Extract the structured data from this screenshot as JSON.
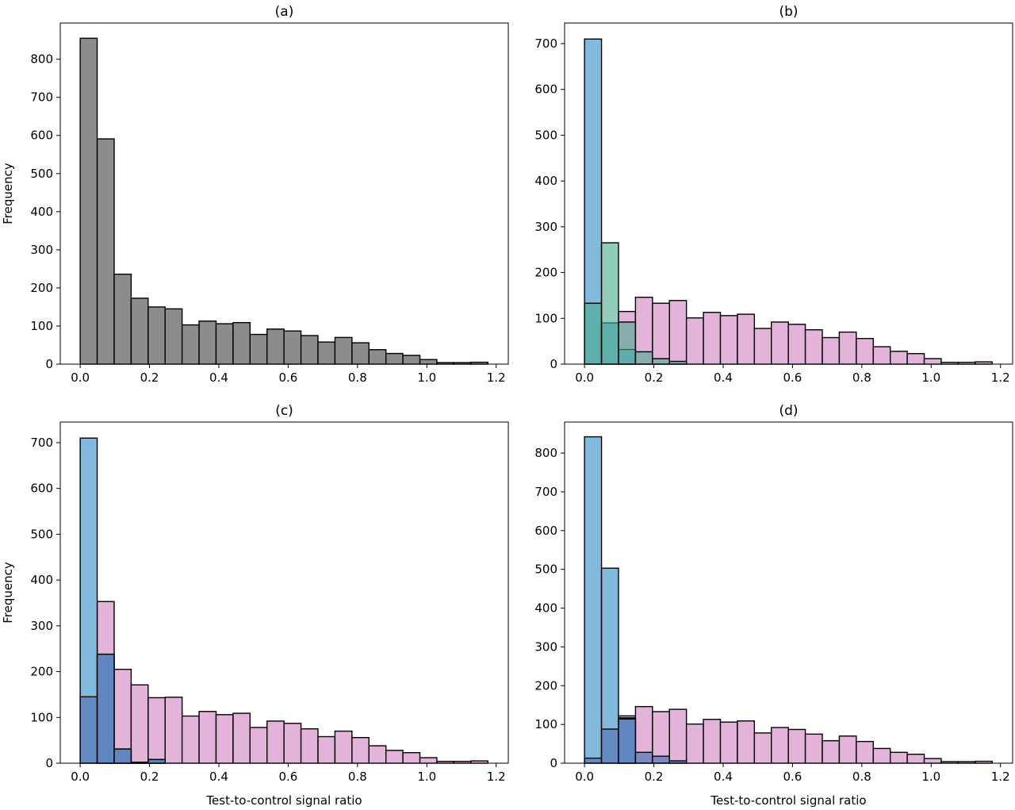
{
  "figure": {
    "background": "#ffffff"
  },
  "colors": {
    "gray": "#8c8c8c",
    "pink": "#e3b3da",
    "blue": "#6baed6",
    "teal": "#4aaa8e",
    "edge": "#000000"
  },
  "chart_data": [
    {
      "id": "a",
      "type": "bar",
      "title": "(a)",
      "xlabel": "",
      "ylabel": "Frequency",
      "xlim": [
        -0.0575,
        1.235
      ],
      "ylim": [
        0,
        895
      ],
      "xticks": [
        0.0,
        0.2,
        0.4,
        0.6,
        0.8,
        1.0,
        1.2
      ],
      "xtick_labels": [
        "0.0",
        "0.2",
        "0.4",
        "0.6",
        "0.8",
        "1.0",
        "1.2"
      ],
      "yticks": [
        0,
        100,
        200,
        300,
        400,
        500,
        600,
        700,
        800
      ],
      "ytick_labels": [
        "0",
        "100",
        "200",
        "300",
        "400",
        "500",
        "600",
        "700",
        "800"
      ],
      "bin_start": 0.0,
      "bin_width": 0.049,
      "series": [
        {
          "color": "#8c8c8c",
          "opacity": 1.0,
          "values": [
            855,
            591,
            236,
            173,
            150,
            145,
            103,
            113,
            106,
            109,
            78,
            92,
            87,
            75,
            58,
            70,
            56,
            38,
            28,
            23,
            12,
            4,
            4,
            5
          ]
        }
      ]
    },
    {
      "id": "b",
      "type": "bar",
      "title": "(b)",
      "xlabel": "",
      "ylabel": "",
      "xlim": [
        -0.0575,
        1.235
      ],
      "ylim": [
        0,
        745
      ],
      "xticks": [
        0.0,
        0.2,
        0.4,
        0.6,
        0.8,
        1.0,
        1.2
      ],
      "xtick_labels": [
        "0.0",
        "0.2",
        "0.4",
        "0.6",
        "0.8",
        "1.0",
        "1.2"
      ],
      "yticks": [
        0,
        100,
        200,
        300,
        400,
        500,
        600,
        700
      ],
      "ytick_labels": [
        "0",
        "100",
        "200",
        "300",
        "400",
        "500",
        "600",
        "700"
      ],
      "bin_start": 0.0,
      "bin_width": 0.049,
      "series": [
        {
          "color": "#e3b3da",
          "opacity": 1.0,
          "values": [
            0,
            0,
            115,
            146,
            133,
            139,
            101,
            113,
            106,
            109,
            78,
            92,
            87,
            75,
            58,
            70,
            56,
            38,
            28,
            23,
            12,
            4,
            4,
            5
          ]
        },
        {
          "color": "#6baed6",
          "opacity": 0.85,
          "values": [
            710,
            90,
            32,
            0,
            0,
            0,
            0,
            0,
            0,
            0,
            0,
            0,
            0,
            0,
            0,
            0,
            0,
            0,
            0,
            0,
            0,
            0,
            0,
            0
          ]
        },
        {
          "color": "#4aaa8e",
          "opacity": 0.6,
          "values": [
            133,
            265,
            92,
            27,
            12,
            6,
            0,
            0,
            0,
            0,
            0,
            0,
            0,
            0,
            0,
            0,
            0,
            0,
            0,
            0,
            0,
            0,
            0,
            0
          ]
        }
      ]
    },
    {
      "id": "c",
      "type": "bar",
      "title": "(c)",
      "xlabel": "Test-to-control signal ratio",
      "ylabel": "Frequency",
      "xlim": [
        -0.0575,
        1.235
      ],
      "ylim": [
        0,
        745
      ],
      "xticks": [
        0.0,
        0.2,
        0.4,
        0.6,
        0.8,
        1.0,
        1.2
      ],
      "xtick_labels": [
        "0.0",
        "0.2",
        "0.4",
        "0.6",
        "0.8",
        "1.0",
        "1.2"
      ],
      "yticks": [
        0,
        100,
        200,
        300,
        400,
        500,
        600,
        700
      ],
      "ytick_labels": [
        "0",
        "100",
        "200",
        "300",
        "400",
        "500",
        "600",
        "700"
      ],
      "bin_start": 0.0,
      "bin_width": 0.049,
      "series": [
        {
          "color": "#e3b3da",
          "opacity": 1.0,
          "values": [
            0,
            353,
            205,
            171,
            143,
            144,
            103,
            113,
            106,
            109,
            78,
            92,
            87,
            75,
            58,
            70,
            56,
            38,
            28,
            23,
            12,
            4,
            4,
            5
          ]
        },
        {
          "color": "#6baed6",
          "opacity": 0.85,
          "values": [
            710,
            238,
            31,
            2,
            8,
            0,
            0,
            0,
            0,
            0,
            0,
            0,
            0,
            0,
            0,
            0,
            0,
            0,
            0,
            0,
            0,
            0,
            0,
            0
          ]
        },
        {
          "color": "#5a7ab8",
          "opacity": 0.75,
          "values": [
            145,
            238,
            31,
            2,
            8,
            0,
            0,
            0,
            0,
            0,
            0,
            0,
            0,
            0,
            0,
            0,
            0,
            0,
            0,
            0,
            0,
            0,
            0,
            0
          ]
        }
      ]
    },
    {
      "id": "d",
      "type": "bar",
      "title": "(d)",
      "xlabel": "Test-to-control signal ratio",
      "ylabel": "",
      "xlim": [
        -0.0575,
        1.235
      ],
      "ylim": [
        0,
        880
      ],
      "xticks": [
        0.0,
        0.2,
        0.4,
        0.6,
        0.8,
        1.0,
        1.2
      ],
      "xtick_labels": [
        "0.0",
        "0.2",
        "0.4",
        "0.6",
        "0.8",
        "1.0",
        "1.2"
      ],
      "yticks": [
        0,
        100,
        200,
        300,
        400,
        500,
        600,
        700,
        800
      ],
      "ytick_labels": [
        "0",
        "100",
        "200",
        "300",
        "400",
        "500",
        "600",
        "700",
        "800"
      ],
      "bin_start": 0.0,
      "bin_width": 0.049,
      "series": [
        {
          "color": "#e3b3da",
          "opacity": 1.0,
          "values": [
            0,
            0,
            122,
            146,
            133,
            139,
            101,
            113,
            106,
            109,
            78,
            92,
            87,
            75,
            58,
            70,
            56,
            38,
            28,
            23,
            12,
            4,
            4,
            5
          ]
        },
        {
          "color": "#6baed6",
          "opacity": 0.85,
          "values": [
            842,
            503,
            117,
            0,
            0,
            0,
            0,
            0,
            0,
            0,
            0,
            0,
            0,
            0,
            0,
            0,
            0,
            0,
            0,
            0,
            0,
            0,
            0,
            0
          ]
        },
        {
          "color": "#5a7ab8",
          "opacity": 0.75,
          "values": [
            13,
            88,
            114,
            28,
            18,
            6,
            0,
            0,
            0,
            0,
            0,
            0,
            0,
            0,
            0,
            0,
            0,
            0,
            0,
            0,
            0,
            0,
            0,
            0
          ]
        }
      ]
    }
  ]
}
